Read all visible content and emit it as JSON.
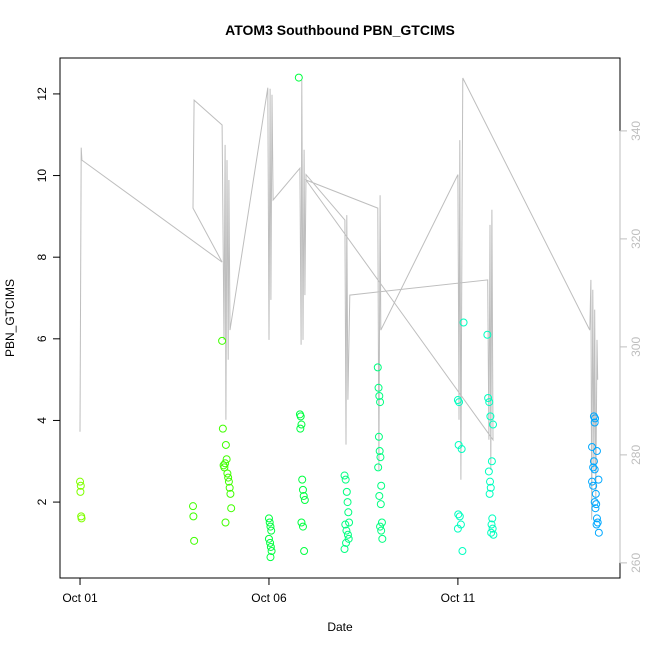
{
  "chart_data": {
    "type": "scatter",
    "title": "ATOM3 Southbound PBN_GTCIMS",
    "x_label": "Date",
    "y_label": "PBN_GTCIMS",
    "xlim": [
      -0.53,
      14.29
    ],
    "xticks": [
      {
        "value": 0,
        "label": "Oct 01"
      },
      {
        "value": 5,
        "label": "Oct 06"
      },
      {
        "value": 10,
        "label": "Oct 11"
      }
    ],
    "ylim": [
      0.14,
      12.88
    ],
    "yticks": [
      2,
      4,
      6,
      8,
      10,
      12
    ],
    "y2lim": [
      257.2,
      353.5
    ],
    "y2ticks": [
      260,
      280,
      300,
      320,
      340
    ],
    "series": [
      {
        "color": "#80ff00",
        "x": [
          0.0,
          0.02,
          0.01,
          0.03,
          0.04
        ],
        "values": [
          2.5,
          2.4,
          2.25,
          1.65,
          1.6
        ]
      },
      {
        "color": "#40ff00",
        "x": [
          2.99,
          3.0,
          3.02,
          3.76,
          3.78,
          3.8,
          3.82,
          3.84,
          3.86,
          3.88,
          3.9,
          3.92,
          3.94,
          3.96,
          3.98,
          3.85,
          4.0
        ],
        "values": [
          1.9,
          1.65,
          1.05,
          5.95,
          3.8,
          2.9,
          2.85,
          2.95,
          3.4,
          3.05,
          2.7,
          2.6,
          2.5,
          2.35,
          2.2,
          1.5,
          1.85
        ]
      },
      {
        "color": "#00ff40",
        "x": [
          5.0,
          5.02,
          5.04,
          5.06,
          5.0,
          5.03,
          5.05,
          5.07,
          5.04,
          5.79,
          5.82,
          5.84,
          5.86,
          5.83,
          5.88,
          5.9,
          5.92,
          5.95,
          5.86,
          5.9,
          5.93
        ],
        "values": [
          1.6,
          1.5,
          1.4,
          1.3,
          1.1,
          1.0,
          0.9,
          0.8,
          0.65,
          12.4,
          4.15,
          4.1,
          3.9,
          3.8,
          2.55,
          2.3,
          2.15,
          2.05,
          1.5,
          1.4,
          0.8
        ]
      },
      {
        "color": "#00ff80",
        "x": [
          7.0,
          7.03,
          7.06,
          7.08,
          7.1,
          7.12,
          7.02,
          7.05,
          7.09,
          7.11,
          7.04,
          7.0,
          7.88,
          7.9,
          7.92,
          7.94,
          7.91,
          7.93,
          7.95,
          7.89,
          7.97,
          7.92,
          7.96,
          7.99,
          7.94,
          7.97,
          8.0
        ],
        "values": [
          2.65,
          2.55,
          2.25,
          2.0,
          1.75,
          1.5,
          1.45,
          1.3,
          1.2,
          1.1,
          1.0,
          0.85,
          5.3,
          4.8,
          4.6,
          4.45,
          3.6,
          3.25,
          3.1,
          2.85,
          2.4,
          2.15,
          1.95,
          1.5,
          1.4,
          1.3,
          1.1
        ]
      },
      {
        "color": "#00ffc0",
        "x": [
          10.15,
          10.0,
          10.03,
          10.02,
          10.1,
          10.01,
          10.05,
          10.08,
          10.0,
          10.12,
          10.78,
          10.8,
          10.83,
          10.86,
          10.93,
          10.9,
          10.82,
          10.85,
          10.87,
          10.84,
          10.91,
          10.89,
          10.92,
          10.88,
          10.94
        ],
        "values": [
          6.4,
          4.5,
          4.45,
          3.4,
          3.3,
          1.7,
          1.65,
          1.45,
          1.35,
          0.8,
          6.1,
          4.55,
          4.45,
          4.1,
          3.9,
          3.0,
          2.75,
          2.5,
          2.35,
          2.2,
          1.6,
          1.45,
          1.35,
          1.25,
          1.2
        ]
      },
      {
        "color": "#00a8ff",
        "x": [
          13.6,
          13.63,
          13.62,
          13.55,
          13.68,
          13.6,
          13.58,
          13.62,
          13.72,
          13.55,
          13.58,
          13.65,
          13.62,
          13.66,
          13.64,
          13.68,
          13.7,
          13.67,
          13.73
        ],
        "values": [
          4.1,
          4.05,
          3.95,
          3.35,
          3.25,
          3.0,
          2.85,
          2.8,
          2.55,
          2.5,
          2.4,
          2.2,
          2.0,
          1.95,
          1.85,
          1.6,
          1.5,
          1.45,
          1.25
        ]
      }
    ],
    "line": {
      "color": "#bebebe",
      "axis": "y2",
      "x": [
        0.0,
        0.03,
        0.05,
        3.76,
        2.99,
        3.02,
        3.76,
        3.81,
        3.84,
        3.86,
        3.89,
        3.92,
        3.94,
        3.97,
        4.97,
        5.0,
        5.03,
        5.05,
        5.08,
        5.11,
        5.82,
        5.85,
        5.87,
        5.9,
        5.93,
        5.95,
        5.98,
        7.01,
        7.04,
        7.06,
        7.09,
        7.14,
        10.79,
        10.82,
        10.85,
        10.87,
        10.9,
        10.93,
        5.98,
        7.88,
        7.91,
        7.94,
        7.96,
        10.0,
        10.03,
        10.05,
        10.08,
        10.11,
        10.13,
        13.49,
        13.52,
        13.54,
        13.57,
        13.6,
        13.62,
        13.65,
        13.68,
        13.7
      ],
      "values": [
        284.3,
        336.9,
        334.6,
        315.7,
        325.7,
        345.7,
        341.1,
        301.3,
        337.4,
        286.5,
        334.6,
        297.6,
        330.9,
        303.1,
        348.0,
        301.3,
        347.8,
        308.7,
        346.7,
        327.2,
        333.1,
        300.4,
        349.4,
        301.3,
        336.5,
        309.6,
        331.9,
        323.5,
        281.9,
        324.4,
        290.2,
        309.6,
        312.4,
        282.8,
        322.6,
        277.2,
        325.4,
        282.8,
        330.9,
        325.7,
        277.2,
        328.1,
        303.1,
        331.9,
        286.5,
        338.3,
        275.4,
        327.2,
        349.8,
        303.1,
        312.4,
        268.0,
        310.6,
        277.2,
        306.9,
        271.7,
        301.3,
        293.9
      ]
    }
  }
}
